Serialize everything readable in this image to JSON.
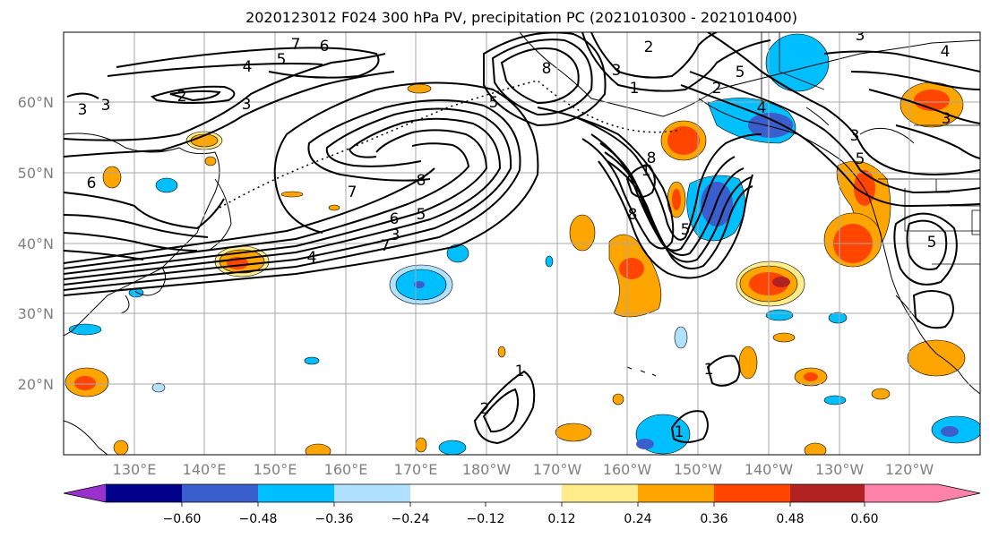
{
  "title": "2020123012 F024 300 hPa PV, precipitation PC (2021010300 - 2021010400)",
  "lat_labels": [
    "60°N",
    "50°N",
    "40°N",
    "30°N",
    "20°N"
  ],
  "lon_labels": [
    "130°E",
    "140°E",
    "150°E",
    "160°E",
    "170°E",
    "180°W",
    "170°W",
    "160°W",
    "150°W",
    "140°W",
    "130°W",
    "120°W"
  ],
  "colorbar": {
    "ticks": [
      "−0.60",
      "−0.48",
      "−0.36",
      "−0.24",
      "−0.12",
      "0.12",
      "0.24",
      "0.36",
      "0.48",
      "0.60"
    ],
    "colors": [
      "#9932cc",
      "#00008b",
      "#3a5fcd",
      "#00bfff",
      "#b0e2ff",
      "#ffffff",
      "#ffec8b",
      "#ffa500",
      "#ff4500",
      "#b22222",
      "#ff82ab"
    ]
  },
  "contour_labels": {
    "l7a": "7",
    "l6a": "6",
    "l5a": "5",
    "l4a": "4",
    "l3a": "3",
    "l2a": "2",
    "l3b": "3",
    "l3c": "3",
    "l6b": "6",
    "l7b": "7",
    "l8a": "8",
    "l6c": "6",
    "l5b": "5",
    "l4b": "4",
    "l3d": "3",
    "l7c": "7",
    "l1a": "1",
    "l3e": "3",
    "l8b": "8",
    "l5c": "5",
    "l8c": "8",
    "l1b": "1",
    "l8d": "8",
    "l5d": "5",
    "l2b": "2",
    "l5e": "5",
    "l3f": "3",
    "l5f": "5",
    "l4c": "4",
    "l3g": "3",
    "l4d": "4",
    "l3h": "3",
    "l2c": "2",
    "l5g": "5",
    "l1c": "1",
    "l2d": "2",
    "l1d": "1",
    "l1e": "1"
  }
}
